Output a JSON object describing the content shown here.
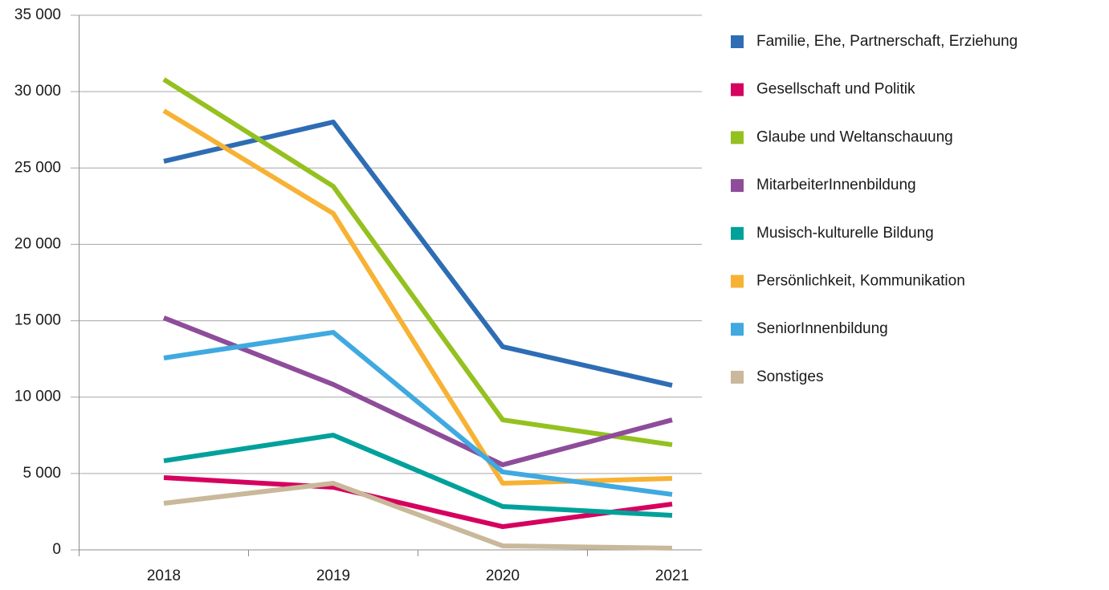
{
  "chart_data": {
    "type": "line",
    "categories": [
      "2018",
      "2019",
      "2020",
      "2021"
    ],
    "series": [
      {
        "name": "Familie, Ehe, Partnerschaft, Erziehung",
        "color": "#2e6db4",
        "values": [
          25440,
          28010,
          13300,
          10770
        ]
      },
      {
        "name": "Gesellschaft und Politik",
        "color": "#d6005f",
        "values": [
          4730,
          4100,
          1520,
          3000
        ]
      },
      {
        "name": "Glaube und Weltanschauung",
        "color": "#94c11f",
        "values": [
          30800,
          23800,
          8510,
          6880
        ]
      },
      {
        "name": "MitarbeiterInnenbildung",
        "color": "#8e4c9a",
        "values": [
          15190,
          10830,
          5570,
          8510
        ]
      },
      {
        "name": "Musisch-kulturelle Bildung",
        "color": "#00a19a",
        "values": [
          5830,
          7510,
          2840,
          2260
        ]
      },
      {
        "name": "Persönlichkeit, Kommunikation",
        "color": "#f7b234",
        "values": [
          28750,
          22020,
          4360,
          4680
        ]
      },
      {
        "name": "SeniorInnenbildung",
        "color": "#3fa9e0",
        "values": [
          12560,
          14240,
          5100,
          3630
        ]
      },
      {
        "name": "Sonstiges",
        "color": "#c9b89a",
        "values": [
          3050,
          4360,
          260,
          110
        ]
      }
    ],
    "ylim": [
      0,
      35000
    ],
    "yticks": [
      0,
      {
        "value": 5000,
        "label": "5 000"
      },
      {
        "value": 10000,
        "label": "10 000"
      },
      {
        "value": 15000,
        "label": "15 000"
      },
      {
        "value": 20000,
        "label": "20 000"
      },
      {
        "value": 25000,
        "label": "25 000"
      },
      {
        "value": 30000,
        "label": "30 000"
      },
      {
        "value": 35000,
        "label": "35 000"
      }
    ],
    "grid": true,
    "legend": "right"
  }
}
